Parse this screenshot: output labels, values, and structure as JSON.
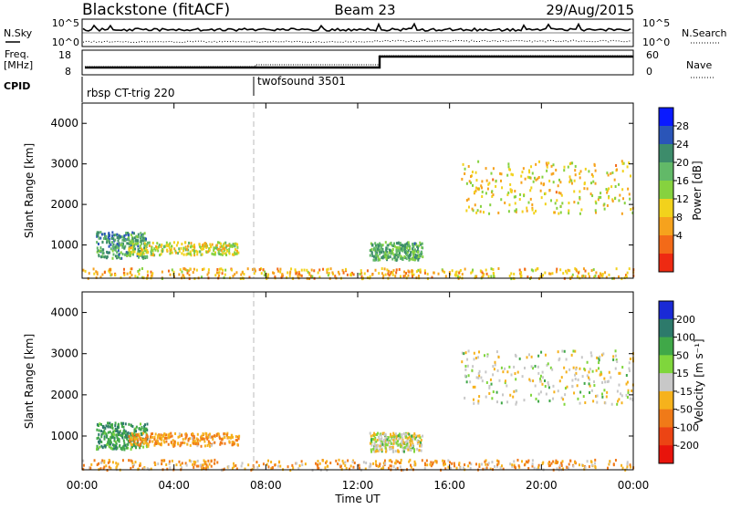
{
  "header": {
    "station": "Blackstone (fitACF)",
    "beam": "Beam 23",
    "date": "29/Aug/2015"
  },
  "panels": {
    "nsky": {
      "label": "N.Sky",
      "ticks": [
        "10^5",
        "10^0"
      ],
      "right_label": "N.Search",
      "right_ticks": [
        "10^5",
        "10^0"
      ]
    },
    "freq": {
      "label_line1": "Freq.",
      "label_line2": "[MHz]",
      "ticks": [
        "18",
        "8"
      ],
      "right_label": "Nave",
      "right_ticks": [
        "60",
        "0"
      ]
    },
    "cpid": {
      "label": "CPID",
      "modes": [
        "rbsp CT-trig 220",
        "twofsound 3501"
      ]
    }
  },
  "chart_data": [
    {
      "type": "heatmap",
      "name": "power",
      "ylabel": "Slant Range [km]",
      "yticks": [
        "4000",
        "3000",
        "2000",
        "1000"
      ],
      "ylim": [
        180,
        4500
      ],
      "xlim": [
        0,
        24
      ],
      "colorbar": {
        "label": "Power [dB]",
        "ticks": [
          "28",
          "24",
          "20",
          "16",
          "12",
          "8",
          "4"
        ],
        "colors": [
          "#0a1aff",
          "#2a55b8",
          "#3d8c6b",
          "#62b968",
          "#86d23f",
          "#f2d21c",
          "#f6a21d",
          "#f36a18",
          "#ee2a12"
        ]
      },
      "features": [
        {
          "t": [
            0.6,
            2.8
          ],
          "r": [
            700,
            1350
          ],
          "level": 22
        },
        {
          "t": [
            2.0,
            6.8
          ],
          "r": [
            780,
            1100
          ],
          "level": 14
        },
        {
          "t": [
            12.5,
            14.8
          ],
          "r": [
            650,
            1100
          ],
          "level": 20
        },
        {
          "t": [
            16.5,
            24.0
          ],
          "r": [
            1800,
            3100
          ],
          "level": 12
        },
        {
          "t": [
            0.0,
            24.0
          ],
          "r": [
            200,
            450
          ],
          "level": 10
        }
      ]
    },
    {
      "type": "heatmap",
      "name": "velocity",
      "ylabel": "Slant Range [km]",
      "yticks": [
        "4000",
        "3000",
        "2000",
        "1000"
      ],
      "ylim": [
        180,
        4500
      ],
      "xlim": [
        0,
        24
      ],
      "xlabel": "Time UT",
      "xticks": [
        "00:00",
        "04:00",
        "08:00",
        "12:00",
        "16:00",
        "20:00",
        "00:00"
      ],
      "colorbar": {
        "label": "Velocity [m s⁻¹]",
        "ticks": [
          "200",
          "100",
          "50",
          "15",
          "-15",
          "-50",
          "-100",
          "-200"
        ],
        "colors": [
          "#1a2ad6",
          "#2d7a6b",
          "#40a848",
          "#7fd63c",
          "#c8c8c8",
          "#f6b21c",
          "#f07a18",
          "#ec4414",
          "#e8140c"
        ]
      },
      "features": [
        {
          "t": [
            0.6,
            2.8
          ],
          "r": [
            700,
            1350
          ],
          "velocity": 60
        },
        {
          "t": [
            2.0,
            6.8
          ],
          "r": [
            780,
            1100
          ],
          "velocity": -50
        },
        {
          "t": [
            12.5,
            14.8
          ],
          "r": [
            650,
            1100
          ],
          "velocity": 0
        },
        {
          "t": [
            16.5,
            24.0
          ],
          "r": [
            1800,
            3100
          ],
          "velocity": 0
        },
        {
          "t": [
            0.0,
            24.0
          ],
          "r": [
            200,
            450
          ],
          "velocity": -40
        }
      ]
    }
  ]
}
